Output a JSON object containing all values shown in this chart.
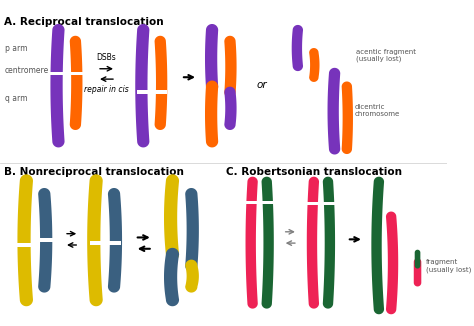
{
  "bg": "#ffffff",
  "purple": "#7733bb",
  "orange": "#ff6600",
  "yellow": "#ddbb00",
  "blue": "#3a6080",
  "red": "#ee2255",
  "green": "#1a6633",
  "label_A": "A. Reciprocal translocation",
  "label_B": "B. Nonreciprocal translocation",
  "label_C": "C. Robertsonian translocation",
  "p_arm": "p arm",
  "centromere_lbl": "centromere",
  "q_arm": "q arm",
  "DSBs": "DSBs",
  "repair": "repair in cis",
  "or": "or",
  "acentic": "acentic fragment\n(usually lost)",
  "dicentric": "dicentric\nchromosome",
  "fragment": "fragment\n(usually lost)"
}
